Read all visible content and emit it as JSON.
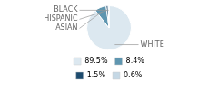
{
  "chart_data": {
    "type": "pie",
    "categories": [
      "WHITE",
      "ASIAN",
      "HISPANIC",
      "BLACK"
    ],
    "values": [
      89.5,
      8.4,
      1.5,
      0.6
    ],
    "value_labels": [
      "89.5%",
      "8.4%",
      "1.5%",
      "0.6%"
    ],
    "colors": [
      "#dce8f0",
      "#5f96b0",
      "#1d4b6e",
      "#c5d8e5"
    ],
    "legend": "bottom"
  }
}
